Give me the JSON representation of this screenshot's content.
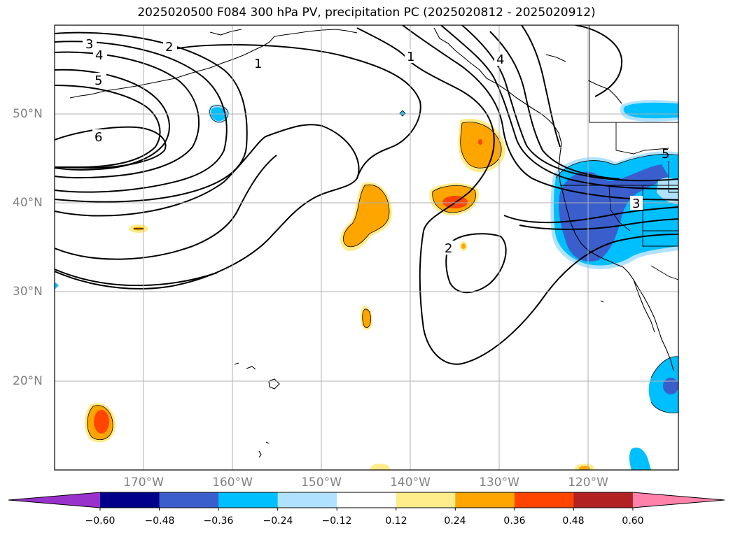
{
  "title": "2025020500 F084 300 hPa PV, precipitation PC (2025020812 - 2025020912)",
  "map": {
    "lon_ticks": [
      "170°W",
      "160°W",
      "150°W",
      "140°W",
      "130°W",
      "120°W"
    ],
    "lat_ticks": [
      "50°N",
      "40°N",
      "30°N",
      "20°N"
    ],
    "grid": true,
    "contour_labels": [
      "3",
      "4",
      "5",
      "6",
      "2",
      "1",
      "1",
      "4",
      "2",
      "3",
      "5"
    ]
  },
  "colorbar": {
    "orientation": "horizontal",
    "extend": "both",
    "ticks": [
      "−0.60",
      "−0.48",
      "−0.36",
      "−0.24",
      "−0.12",
      "0.12",
      "0.24",
      "0.36",
      "0.48",
      "0.60"
    ],
    "colors": [
      "#9932cc",
      "#00008b",
      "#3a5fcd",
      "#00bfff",
      "#b0e2ff",
      "#ffffff",
      "#ffec8b",
      "#ffa500",
      "#ff4500",
      "#b22222",
      "#ff82ab"
    ]
  }
}
